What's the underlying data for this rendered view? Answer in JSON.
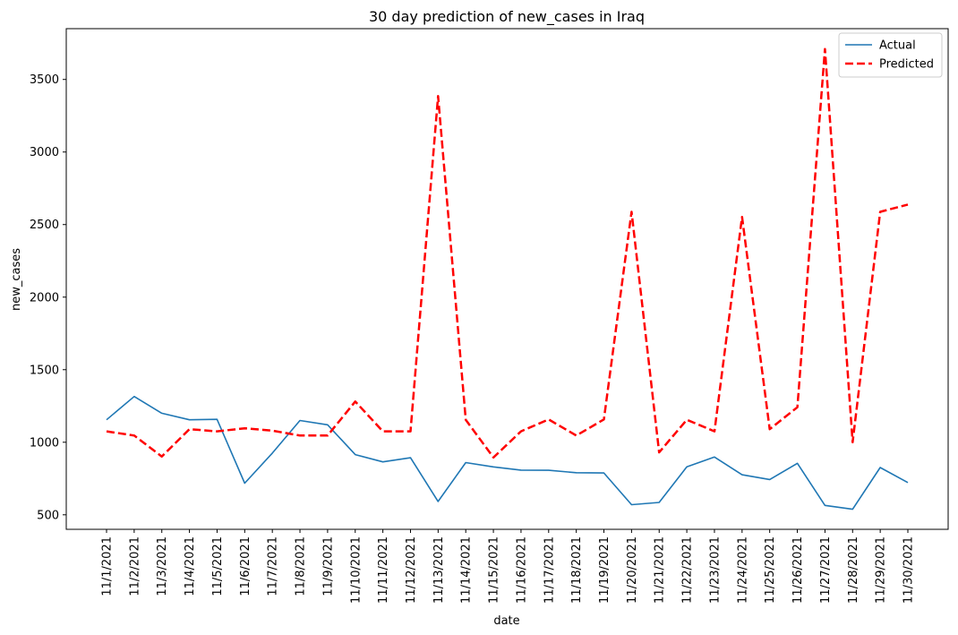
{
  "chart_data": {
    "type": "line",
    "title": "30 day prediction of new_cases in Iraq",
    "xlabel": "date",
    "ylabel": "new_cases",
    "ylim": [
      400,
      3850
    ],
    "yticks": [
      500,
      1000,
      1500,
      2000,
      2500,
      3000,
      3500
    ],
    "categories": [
      "11/1/2021",
      "11/2/2021",
      "11/3/2021",
      "11/4/2021",
      "11/5/2021",
      "11/6/2021",
      "11/7/2021",
      "11/8/2021",
      "11/9/2021",
      "11/10/2021",
      "11/11/2021",
      "11/12/2021",
      "11/13/2021",
      "11/14/2021",
      "11/15/2021",
      "11/16/2021",
      "11/17/2021",
      "11/18/2021",
      "11/19/2021",
      "11/20/2021",
      "11/21/2021",
      "11/22/2021",
      "11/23/2021",
      "11/24/2021",
      "11/25/2021",
      "11/26/2021",
      "11/27/2021",
      "11/28/2021",
      "11/29/2021",
      "11/30/2021"
    ],
    "series": [
      {
        "name": "Actual",
        "color": "#1f77b4",
        "style": "solid",
        "values": [
          1155,
          1315,
          1200,
          1155,
          1158,
          718,
          925,
          1150,
          1120,
          915,
          865,
          893,
          592,
          860,
          830,
          808,
          807,
          790,
          788,
          570,
          585,
          830,
          898,
          776,
          743,
          855,
          565,
          538,
          826,
          722
        ]
      },
      {
        "name": "Predicted",
        "color": "#ff0000",
        "style": "dashed",
        "values": [
          1075,
          1046,
          902,
          1090,
          1075,
          1096,
          1080,
          1046,
          1046,
          1281,
          1075,
          1075,
          3385,
          1155,
          895,
          1075,
          1157,
          1046,
          1157,
          2588,
          930,
          1155,
          1075,
          2553,
          1090,
          1241,
          3710,
          1000,
          2588,
          2638
        ]
      }
    ],
    "legend": {
      "position": "top-right"
    },
    "grid": false
  }
}
